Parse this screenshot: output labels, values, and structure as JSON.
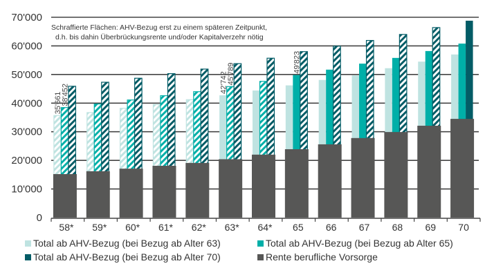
{
  "chart_data": {
    "type": "bar",
    "stacked_partially": true,
    "title": "",
    "annotation": {
      "line1": "Schraffierte Flächen: AHV-Bezug erst zu einem späteren Zeitpunkt,",
      "line2": "d.h. bis dahin Überbrückungsrente und/oder Kapitalverzehr nötig"
    },
    "xlabel": "",
    "ylabel": "",
    "ylim": [
      0,
      70000
    ],
    "yticks": [
      0,
      10000,
      20000,
      30000,
      40000,
      50000,
      60000,
      70000
    ],
    "ytick_labels": [
      "0",
      "10'000",
      "20'000",
      "30'000",
      "40'000",
      "50'000",
      "60'000",
      "70'000"
    ],
    "grid": true,
    "categories": [
      "58*",
      "59*",
      "60*",
      "61*",
      "62*",
      "63*",
      "64*",
      "65",
      "66",
      "67",
      "68",
      "69",
      "70"
    ],
    "series": [
      {
        "name": "Total ab AHV-Bezug (bei Bezug ab Alter 63)",
        "color": "#bfe3e1",
        "values": [
          35661,
          36700,
          38200,
          39500,
          41200,
          42742,
          44400,
          46200,
          48100,
          49700,
          52200,
          54500,
          57000
        ],
        "hatched": [
          true,
          true,
          true,
          true,
          true,
          false,
          false,
          false,
          false,
          false,
          false,
          false,
          false
        ]
      },
      {
        "name": "Total ab AHV-Bezug (bei Bezug ab Alter 65)",
        "color": "#00afa8",
        "values": [
          38452,
          39700,
          41100,
          42600,
          44000,
          45789,
          47600,
          49823,
          51700,
          53800,
          55800,
          58200,
          60800
        ],
        "hatched": [
          true,
          true,
          true,
          true,
          true,
          true,
          true,
          false,
          false,
          false,
          false,
          false,
          false
        ]
      },
      {
        "name": "Total ab AHV-Bezug (bei Bezug ab Alter 70)",
        "color": "#035c66",
        "values": [
          45900,
          47300,
          48700,
          50300,
          51900,
          53800,
          55700,
          58000,
          59900,
          61900,
          64000,
          66400,
          68800
        ],
        "hatched": [
          true,
          true,
          true,
          true,
          true,
          true,
          true,
          true,
          true,
          true,
          true,
          true,
          false
        ]
      },
      {
        "name": "Rente berufliche Vorsorge",
        "color": "#575756",
        "values": [
          15200,
          16200,
          17100,
          18100,
          19100,
          20400,
          22000,
          23900,
          25600,
          27800,
          29900,
          32100,
          34500
        ],
        "hatched": [
          false,
          false,
          false,
          false,
          false,
          false,
          false,
          false,
          false,
          false,
          false,
          false,
          false
        ]
      }
    ],
    "data_labels": [
      {
        "category": "58*",
        "series": 0,
        "text": "35'661"
      },
      {
        "category": "58*",
        "series": 1,
        "text": "38'452"
      },
      {
        "category": "63*",
        "series": 0,
        "text": "42'742"
      },
      {
        "category": "63*",
        "series": 1,
        "text": "45'789"
      },
      {
        "category": "65",
        "series": 1,
        "text": "49'823"
      }
    ],
    "legend": {
      "placement": "bottom",
      "items": [
        {
          "label": "Total ab AHV-Bezug (bei Bezug ab Alter 63)",
          "color": "#bfe3e1"
        },
        {
          "label": "Total ab AHV-Bezug (bei Bezug ab Alter 65)",
          "color": "#00afa8"
        },
        {
          "label": "Total ab AHV-Bezug (bei Bezug ab Alter 70)",
          "color": "#035c66"
        },
        {
          "label": "Rente berufliche Vorsorge",
          "color": "#575756"
        }
      ]
    }
  }
}
